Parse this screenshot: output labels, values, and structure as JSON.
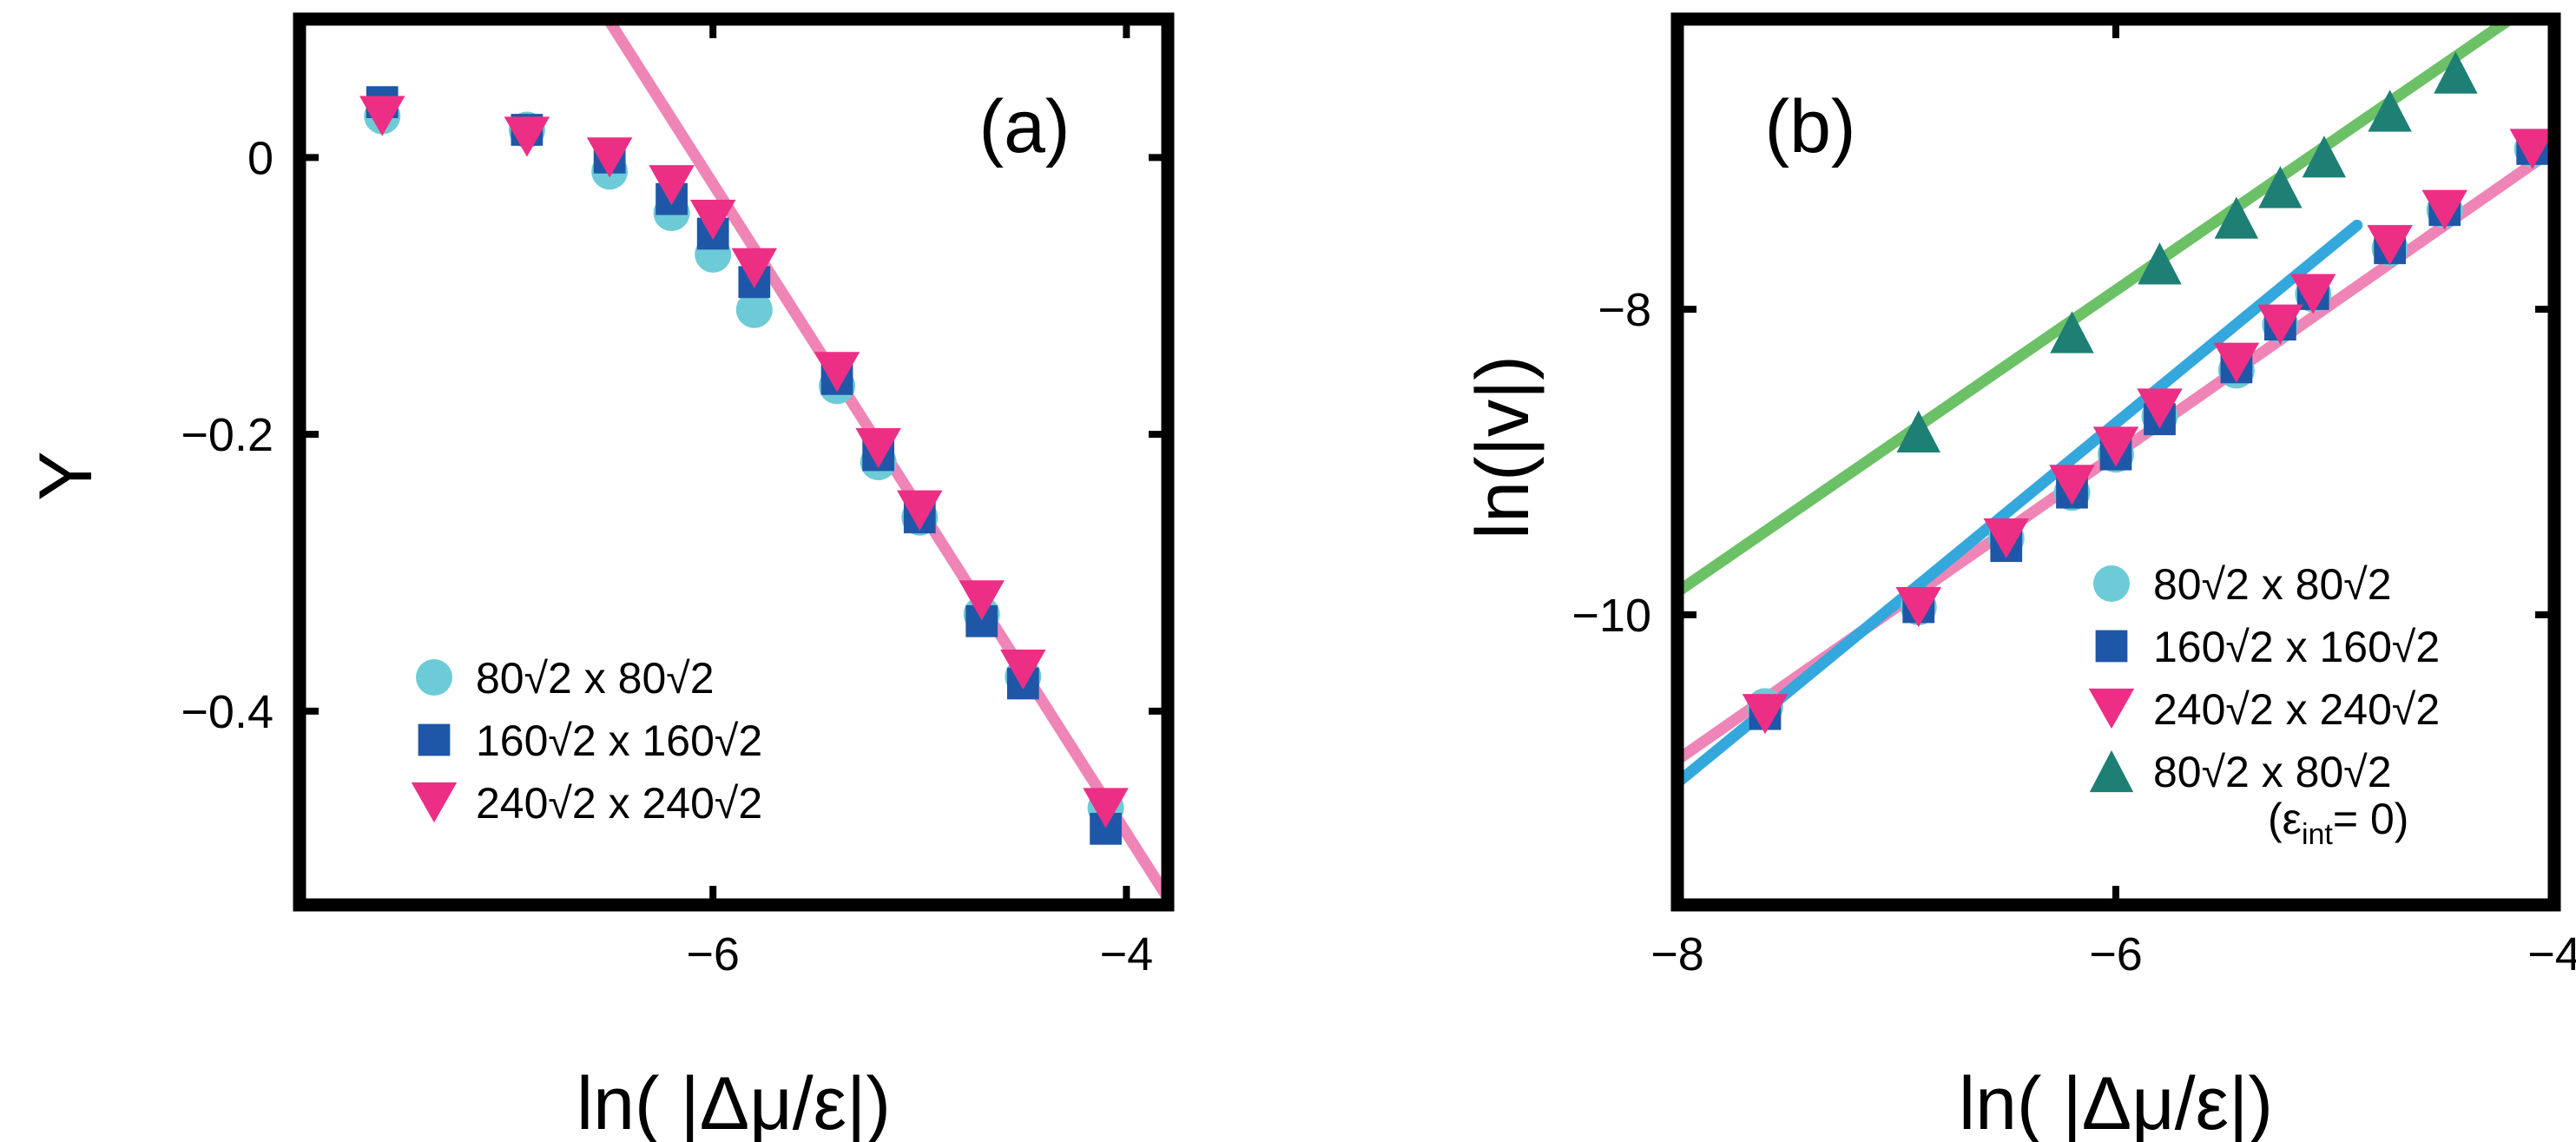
{
  "chart_data": [
    {
      "panel": "a",
      "type": "scatter",
      "panel_label": "(a)",
      "xlabel": "ln( |Δμ/ε|)",
      "ylabel": "Y",
      "xlim": [
        -8.0,
        -3.8
      ],
      "ylim": [
        -0.54,
        0.1
      ],
      "xticks": [
        {
          "value": -6,
          "label": "−6"
        },
        {
          "value": -4,
          "label": "−4"
        }
      ],
      "yticks": [
        {
          "value": 0,
          "label": "0"
        },
        {
          "value": -0.2,
          "label": "−0.2"
        },
        {
          "value": -0.4,
          "label": "−0.4"
        }
      ],
      "series": [
        {
          "name": "80√2 x 80√2",
          "marker": "circle",
          "color": "#6ccbd6",
          "x": [
            -7.6,
            -6.9,
            -6.5,
            -6.2,
            -6.0,
            -5.8,
            -5.4,
            -5.2,
            -5.0,
            -4.7,
            -4.5,
            -4.1
          ],
          "y": [
            0.03,
            0.02,
            -0.01,
            -0.04,
            -0.07,
            -0.11,
            -0.165,
            -0.22,
            -0.26,
            -0.33,
            -0.375,
            -0.47
          ]
        },
        {
          "name": "160√2 x 160√2",
          "marker": "square",
          "color": "#1f57a8",
          "x": [
            -7.6,
            -6.9,
            -6.5,
            -6.2,
            -6.0,
            -5.8,
            -5.4,
            -5.2,
            -5.0,
            -4.7,
            -4.5,
            -4.1
          ],
          "y": [
            0.04,
            0.02,
            0.0,
            -0.03,
            -0.055,
            -0.09,
            -0.16,
            -0.215,
            -0.26,
            -0.335,
            -0.38,
            -0.485
          ]
        },
        {
          "name": "240√2 x 240√2",
          "marker": "triangle-down",
          "color": "#ec2f84",
          "x": [
            -7.6,
            -6.9,
            -6.5,
            -6.2,
            -6.0,
            -5.8,
            -5.4,
            -5.2,
            -5.0,
            -4.7,
            -4.5,
            -4.1
          ],
          "y": [
            0.03,
            0.015,
            0.0,
            -0.02,
            -0.045,
            -0.08,
            -0.155,
            -0.21,
            -0.255,
            -0.32,
            -0.37,
            -0.47
          ]
        }
      ],
      "fits": [
        {
          "name": "fit",
          "color": "#ef85b6",
          "x": [
            -6.55,
            -3.8
          ],
          "y": [
            0.11,
            -0.535
          ]
        }
      ],
      "legend_position": "bottom-left"
    },
    {
      "panel": "b",
      "type": "scatter",
      "panel_label": "(b)",
      "xlabel": "ln( |Δμ/ε|)",
      "ylabel": "ln(|v|)",
      "xlim": [
        -8.0,
        -4.0
      ],
      "ylim": [
        -11.9,
        -6.1
      ],
      "xticks": [
        {
          "value": -8,
          "label": "−8"
        },
        {
          "value": -6,
          "label": "−6"
        },
        {
          "value": -4,
          "label": "−4"
        }
      ],
      "yticks": [
        {
          "value": -8,
          "label": "−8"
        },
        {
          "value": -10,
          "label": "−10"
        }
      ],
      "series": [
        {
          "name": "80√2 x 80√2",
          "marker": "circle",
          "color": "#6ccbd6",
          "x": [
            -7.6,
            -6.9,
            -6.5,
            -6.2,
            -6.0,
            -5.8,
            -5.45,
            -5.25,
            -5.1,
            -4.75,
            -4.5,
            -4.1
          ],
          "y": [
            -10.6,
            -9.95,
            -9.5,
            -9.2,
            -8.95,
            -8.7,
            -8.4,
            -8.1,
            -7.9,
            -7.6,
            -7.35,
            -6.95
          ]
        },
        {
          "name": "160√2 x 160√2",
          "marker": "square",
          "color": "#1f57a8",
          "x": [
            -7.6,
            -6.9,
            -6.5,
            -6.2,
            -6.0,
            -5.8,
            -5.45,
            -5.25,
            -5.1,
            -4.75,
            -4.5,
            -4.1
          ],
          "y": [
            -10.65,
            -9.95,
            -9.55,
            -9.2,
            -8.95,
            -8.72,
            -8.38,
            -8.1,
            -7.9,
            -7.6,
            -7.35,
            -6.95
          ]
        },
        {
          "name": "240√2 x 240√2",
          "marker": "triangle-down",
          "color": "#ec2f84",
          "x": [
            -7.6,
            -6.9,
            -6.5,
            -6.2,
            -6.0,
            -5.8,
            -5.45,
            -5.25,
            -5.1,
            -4.75,
            -4.5,
            -4.1
          ],
          "y": [
            -10.65,
            -9.95,
            -9.5,
            -9.15,
            -8.9,
            -8.65,
            -8.35,
            -8.1,
            -7.9,
            -7.58,
            -7.35,
            -6.95
          ]
        },
        {
          "name": "80√2 x 80√2",
          "sublabel": "(ε",
          "subscript": "int",
          "sublabel_end": "= 0)",
          "marker": "triangle-up",
          "color": "#1e7f74",
          "x": [
            -6.9,
            -6.2,
            -5.8,
            -5.45,
            -5.25,
            -5.05,
            -4.75,
            -4.45
          ],
          "y": [
            -8.8,
            -8.15,
            -7.7,
            -7.4,
            -7.2,
            -7.0,
            -6.7,
            -6.45
          ]
        }
      ],
      "fits": [
        {
          "name": "fit-pink",
          "color": "#ef85b6",
          "x": [
            -8.0,
            -4.0
          ],
          "y": [
            -10.95,
            -6.95
          ]
        },
        {
          "name": "fit-blue",
          "color": "#34a8dc",
          "x": [
            -8.0,
            -4.9
          ],
          "y": [
            -11.1,
            -7.45
          ]
        },
        {
          "name": "fit-green",
          "color": "#6cc167",
          "x": [
            -8.0,
            -4.05
          ],
          "y": [
            -9.85,
            -5.95
          ]
        }
      ],
      "legend_position": "bottom-right"
    }
  ]
}
